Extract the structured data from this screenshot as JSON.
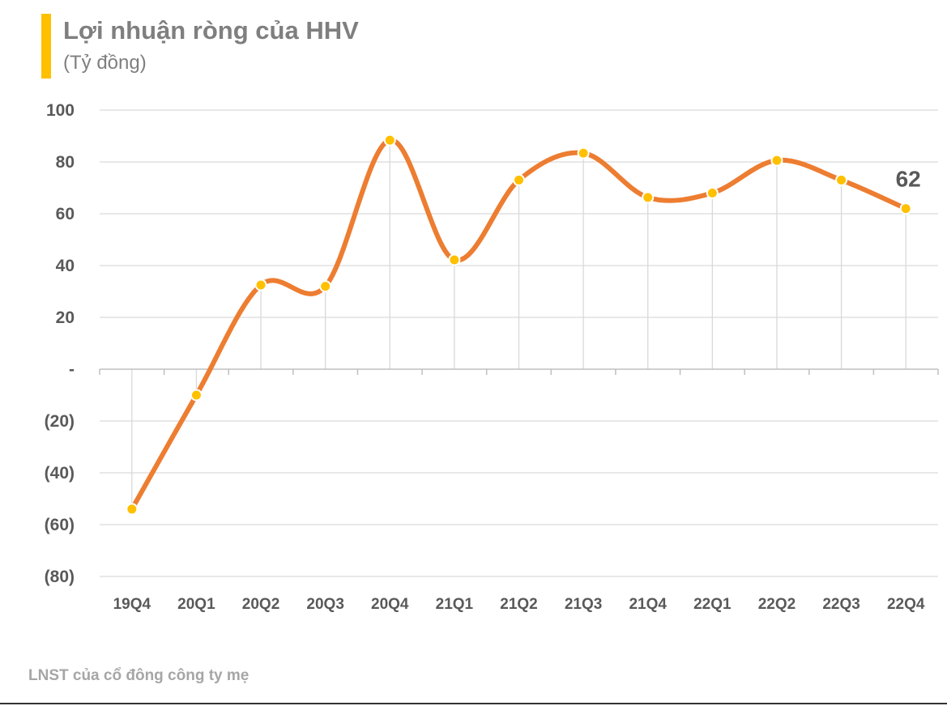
{
  "chart_data": {
    "type": "line",
    "title": "Lợi nhuận ròng của HHV",
    "subtitle": "(Tỷ đồng)",
    "note": "LNST của cổ đông công ty mẹ",
    "categories": [
      "19Q4",
      "20Q1",
      "20Q2",
      "20Q3",
      "20Q4",
      "21Q1",
      "21Q2",
      "21Q3",
      "21Q4",
      "22Q1",
      "22Q2",
      "22Q3",
      "22Q4"
    ],
    "values": [
      -54,
      -10,
      32.5,
      32,
      88.4,
      42.2,
      73,
      83.4,
      66.3,
      68,
      80.6,
      73,
      62
    ],
    "data_labels": [
      {
        "category": "22Q4",
        "text": "62"
      }
    ],
    "ylim": [
      -80,
      100
    ],
    "yticks": [
      100,
      80,
      60,
      40,
      20,
      0,
      -20,
      -40,
      -60,
      -80
    ],
    "ytick_labels": [
      "100",
      "80",
      "60",
      "40",
      "20",
      "-",
      "(20)",
      "(40)",
      "(60)",
      "(80)"
    ],
    "grid": true,
    "smooth": true,
    "colors": {
      "line": "#ED7D31",
      "marker": "#FFC000",
      "accent_bar": "#FFC000",
      "grid": "#d9d9d9"
    }
  }
}
